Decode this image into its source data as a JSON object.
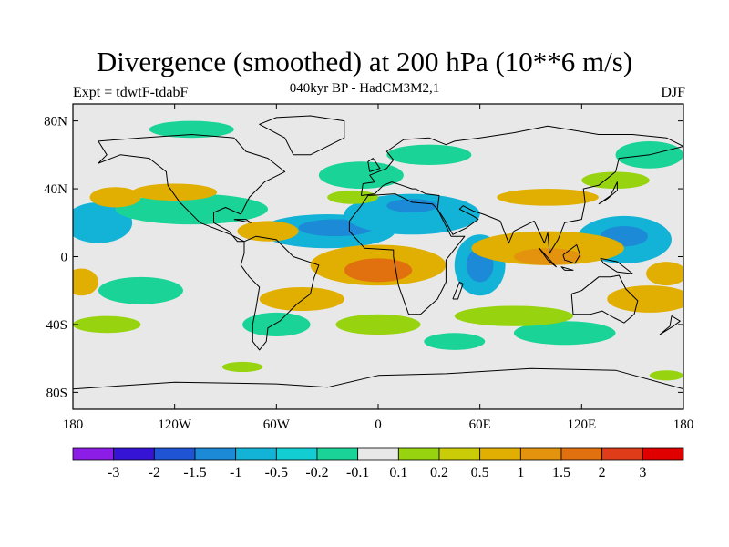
{
  "title": "Divergence (smoothed) at 200 hPa (10**6 m/s)",
  "subtitle": "040kyr BP - HadCM3M2,1",
  "experiment": "Expt = tdwtF-tdabF",
  "season": "DJF",
  "y_axis": [
    {
      "label": "80N",
      "lat": 80
    },
    {
      "label": "40N",
      "lat": 40
    },
    {
      "label": "0",
      "lat": 0
    },
    {
      "label": "40S",
      "lat": -40
    },
    {
      "label": "80S",
      "lat": -80
    }
  ],
  "x_axis": [
    {
      "label": "180",
      "lon": -180
    },
    {
      "label": "120W",
      "lon": -120
    },
    {
      "label": "60W",
      "lon": -60
    },
    {
      "label": "0",
      "lon": 0
    },
    {
      "label": "60E",
      "lon": 60
    },
    {
      "label": "120E",
      "lon": 120
    },
    {
      "label": "180",
      "lon": 180
    }
  ],
  "colorbar": {
    "colors": [
      "#8c1de6",
      "#3514d6",
      "#1f55d4",
      "#1c8ad6",
      "#12b3d6",
      "#12cdd2",
      "#1ad396",
      "#e8e8e8",
      "#97d30e",
      "#c9cc07",
      "#e0af02",
      "#e3930d",
      "#e1700f",
      "#df3d1a",
      "#e00000"
    ],
    "labels": [
      "-3",
      "-2",
      "-1.5",
      "-1",
      "-0.5",
      "-0.2",
      "-0.1",
      "0.1",
      "0.2",
      "0.5",
      "1",
      "1.5",
      "2",
      "3"
    ]
  },
  "colors": {
    "background": "#e8e8e8",
    "neg_weak": "#1ad396",
    "neg_mid": "#12b3d6",
    "neg_strong": "#1c8ad6",
    "pos_weak": "#97d30e",
    "pos_mid": "#e0af02",
    "pos_strong": "#e3930d",
    "pos_very": "#e1700f"
  },
  "field_patches": [
    {
      "lon": -30,
      "lat": 15,
      "rx": 40,
      "ry": 10,
      "level": "neg_mid"
    },
    {
      "lon": -25,
      "lat": 17,
      "rx": 22,
      "ry": 5,
      "level": "neg_strong"
    },
    {
      "lon": 20,
      "lat": 25,
      "rx": 40,
      "ry": 12,
      "level": "neg_mid"
    },
    {
      "lon": 20,
      "lat": 30,
      "rx": 15,
      "ry": 4,
      "level": "neg_strong"
    },
    {
      "lon": 145,
      "lat": 10,
      "rx": 28,
      "ry": 14,
      "level": "neg_mid"
    },
    {
      "lon": 145,
      "lat": 12,
      "rx": 14,
      "ry": 6,
      "level": "neg_strong"
    },
    {
      "lon": -165,
      "lat": 20,
      "rx": 20,
      "ry": 12,
      "level": "neg_mid"
    },
    {
      "lon": -110,
      "lat": 28,
      "rx": 45,
      "ry": 9,
      "level": "neg_weak"
    },
    {
      "lon": 60,
      "lat": -5,
      "rx": 15,
      "ry": 18,
      "level": "neg_mid"
    },
    {
      "lon": 60,
      "lat": -5,
      "rx": 8,
      "ry": 10,
      "level": "neg_strong"
    },
    {
      "lon": 160,
      "lat": 60,
      "rx": 20,
      "ry": 8,
      "level": "neg_weak"
    },
    {
      "lon": 30,
      "lat": 60,
      "rx": 25,
      "ry": 6,
      "level": "neg_weak"
    },
    {
      "lon": -60,
      "lat": -40,
      "rx": 20,
      "ry": 7,
      "level": "neg_weak"
    },
    {
      "lon": 45,
      "lat": -50,
      "rx": 18,
      "ry": 5,
      "level": "neg_weak"
    },
    {
      "lon": -110,
      "lat": 75,
      "rx": 25,
      "ry": 5,
      "level": "neg_weak"
    },
    {
      "lon": -10,
      "lat": 48,
      "rx": 25,
      "ry": 8,
      "level": "neg_weak"
    },
    {
      "lon": -140,
      "lat": -20,
      "rx": 25,
      "ry": 8,
      "level": "neg_weak"
    },
    {
      "lon": 110,
      "lat": -45,
      "rx": 30,
      "ry": 7,
      "level": "neg_weak"
    },
    {
      "lon": 0,
      "lat": -5,
      "rx": 40,
      "ry": 12,
      "level": "pos_mid"
    },
    {
      "lon": 0,
      "lat": -8,
      "rx": 20,
      "ry": 7,
      "level": "pos_very"
    },
    {
      "lon": 100,
      "lat": 5,
      "rx": 45,
      "ry": 10,
      "level": "pos_mid"
    },
    {
      "lon": 100,
      "lat": 0,
      "rx": 20,
      "ry": 5,
      "level": "pos_strong"
    },
    {
      "lon": -65,
      "lat": 15,
      "rx": 18,
      "ry": 6,
      "level": "pos_mid"
    },
    {
      "lon": -120,
      "lat": 38,
      "rx": 25,
      "ry": 5,
      "level": "pos_mid"
    },
    {
      "lon": -155,
      "lat": 35,
      "rx": 15,
      "ry": 6,
      "level": "pos_mid"
    },
    {
      "lon": 100,
      "lat": 35,
      "rx": 30,
      "ry": 5,
      "level": "pos_mid"
    },
    {
      "lon": -175,
      "lat": -15,
      "rx": 10,
      "ry": 8,
      "level": "pos_mid"
    },
    {
      "lon": -45,
      "lat": -25,
      "rx": 25,
      "ry": 7,
      "level": "pos_mid"
    },
    {
      "lon": 160,
      "lat": -25,
      "rx": 25,
      "ry": 8,
      "level": "pos_mid"
    },
    {
      "lon": 170,
      "lat": -10,
      "rx": 12,
      "ry": 7,
      "level": "pos_mid"
    },
    {
      "lon": -160,
      "lat": -40,
      "rx": 20,
      "ry": 5,
      "level": "pos_weak"
    },
    {
      "lon": 80,
      "lat": -35,
      "rx": 35,
      "ry": 6,
      "level": "pos_weak"
    },
    {
      "lon": 0,
      "lat": -40,
      "rx": 25,
      "ry": 6,
      "level": "pos_weak"
    },
    {
      "lon": -15,
      "lat": 35,
      "rx": 15,
      "ry": 4,
      "level": "pos_weak"
    },
    {
      "lon": 140,
      "lat": 45,
      "rx": 20,
      "ry": 5,
      "level": "pos_weak"
    },
    {
      "lon": -80,
      "lat": -65,
      "rx": 12,
      "ry": 3,
      "level": "pos_weak"
    },
    {
      "lon": 170,
      "lat": -70,
      "rx": 10,
      "ry": 3,
      "level": "pos_weak"
    }
  ]
}
